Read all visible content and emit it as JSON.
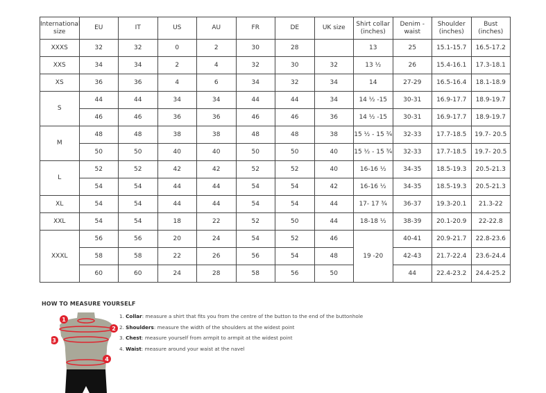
{
  "table": {
    "headers": [
      "International size",
      "EU",
      "IT",
      "US",
      "AU",
      "FR",
      "DE",
      "UK size",
      "Shirt collar (inches)",
      "Denim - waist",
      "Shoulder (inches)",
      "Bust (inches)"
    ],
    "groups": [
      {
        "size": "XXXS",
        "rows": [
          [
            "32",
            "32",
            "0",
            "2",
            "30",
            "28",
            "",
            "13",
            "25",
            "15.1-15.7",
            "16.5-17.2"
          ]
        ]
      },
      {
        "size": "XXS",
        "rows": [
          [
            "34",
            "34",
            "2",
            "4",
            "32",
            "30",
            "32",
            "13 ½",
            "26",
            "15.4-16.1",
            "17.3-18.1"
          ]
        ]
      },
      {
        "size": "XS",
        "rows": [
          [
            "36",
            "36",
            "4",
            "6",
            "34",
            "32",
            "34",
            "14",
            "27-29",
            "16.5-16.4",
            "18.1-18.9"
          ]
        ]
      },
      {
        "size": "S",
        "rows": [
          [
            "44",
            "44",
            "34",
            "34",
            "44",
            "44",
            "34",
            "14 ½ -15",
            "30-31",
            "16.9-17.7",
            "18.9-19.7"
          ],
          [
            "46",
            "46",
            "36",
            "36",
            "46",
            "46",
            "36",
            "14 ½ -15",
            "30-31",
            "16.9-17.7",
            "18.9-19.7"
          ]
        ]
      },
      {
        "size": "M",
        "rows": [
          [
            "48",
            "48",
            "38",
            "38",
            "48",
            "48",
            "38",
            "15 ½ - 15 ¾",
            "32-33",
            "17.7-18.5",
            "19.7- 20.5"
          ],
          [
            "50",
            "50",
            "40",
            "40",
            "50",
            "50",
            "40",
            "15 ½ - 15 ¾",
            "32-33",
            "17.7-18.5",
            "19.7- 20.5"
          ]
        ]
      },
      {
        "size": "L",
        "rows": [
          [
            "52",
            "52",
            "42",
            "42",
            "52",
            "52",
            "40",
            "16-16 ½",
            "34-35",
            "18.5-19.3",
            "20.5-21.3"
          ],
          [
            "54",
            "54",
            "44",
            "44",
            "54",
            "54",
            "42",
            "16-16 ½",
            "34-35",
            "18.5-19.3",
            "20.5-21.3"
          ]
        ]
      },
      {
        "size": "XL",
        "rows": [
          [
            "54",
            "54",
            "44",
            "44",
            "54",
            "54",
            "44",
            "17- 17 ¾",
            "36-37",
            "19.3-20.1",
            "21.3-22"
          ]
        ]
      },
      {
        "size": "XXL",
        "rows": [
          [
            "54",
            "54",
            "18",
            "22",
            "52",
            "50",
            "44",
            "18-18 ½",
            "38-39",
            "20.1-20.9",
            "22-22.8"
          ]
        ]
      },
      {
        "size": "XXXL",
        "rows": [
          [
            "56",
            "56",
            "20",
            "24",
            "54",
            "52",
            "46",
            "19 -20",
            "40-41",
            "20.9-21.7",
            "22.8-23.6"
          ],
          [
            "58",
            "58",
            "22",
            "26",
            "56",
            "54",
            "48",
            null,
            "42-43",
            "21.7-22.4",
            "23.6-24.4"
          ],
          [
            "60",
            "60",
            "24",
            "28",
            "58",
            "56",
            "50",
            null,
            "44",
            "22.4-23.2",
            "24.4-25.2"
          ]
        ]
      }
    ]
  },
  "guide": {
    "title": "HOW TO MEASURE YOURSELF",
    "steps": [
      {
        "num": "1.",
        "term": "Collar",
        "text": ": measure a shirt that fits you from the centre of the button to the end of the buttonhole"
      },
      {
        "num": "2.",
        "term": "Shoulders",
        "text": ": measure the width of the shoulders at the widest point"
      },
      {
        "num": "3.",
        "term": "Chest",
        "text": ": measure yourself from armpit to armpit at the widest point"
      },
      {
        "num": "4.",
        "term": "Waist",
        "text": ": measure around your waist at the navel"
      }
    ],
    "markers": [
      "1",
      "2",
      "3",
      "4"
    ],
    "colors": {
      "torso": "#a9a899",
      "marker": "#e0232e",
      "shorts": "#111111"
    }
  }
}
